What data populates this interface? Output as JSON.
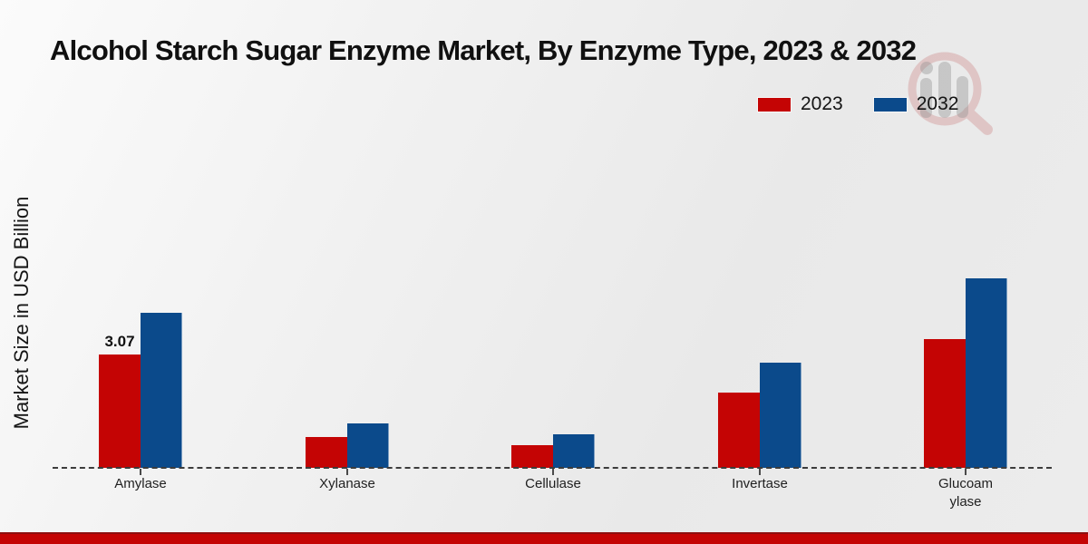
{
  "page": {
    "title": "Alcohol Starch Sugar Enzyme Market, By Enzyme Type, 2023 & 2032"
  },
  "chart_data": {
    "type": "bar",
    "title": "Alcohol Starch Sugar Enzyme Market, By Enzyme Type, 2023 & 2032",
    "xlabel": "",
    "ylabel": "Market Size in USD Billion",
    "categories": [
      "Amylase",
      "Xylanase",
      "Cellulase",
      "Invertase",
      "Glucoamylase"
    ],
    "category_display": [
      "Amylase",
      "Xylanase",
      "Cellulase",
      "Invertase",
      "Glucoam\nylase"
    ],
    "series": [
      {
        "name": "2023",
        "color": "#c40404",
        "values": [
          3.07,
          0.84,
          0.61,
          2.04,
          3.49
        ],
        "point_labels": [
          "3.07",
          "",
          "",
          "",
          ""
        ]
      },
      {
        "name": "2032",
        "color": "#0b4a8b",
        "values": [
          4.2,
          1.2,
          0.91,
          2.85,
          5.13
        ],
        "point_labels": [
          "",
          "",
          "",
          "",
          ""
        ]
      }
    ],
    "ylim": [
      0,
      5.5
    ],
    "grid": false,
    "legend_position": "top-right",
    "baseline_style": "dashed",
    "annotations": [
      "3.07 shown above 2023 Amylase bar"
    ]
  },
  "footer": {
    "band_color": "#c40404"
  },
  "watermark": {
    "icon": "magnifier-people-logo"
  }
}
